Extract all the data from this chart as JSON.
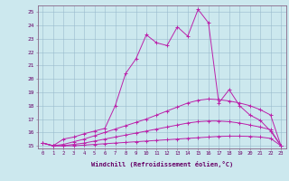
{
  "xlabel": "Windchill (Refroidissement éolien,°C)",
  "xlim": [
    -0.5,
    23.5
  ],
  "ylim": [
    14.8,
    25.5
  ],
  "yticks": [
    15,
    16,
    17,
    18,
    19,
    20,
    21,
    22,
    23,
    24,
    25
  ],
  "xticks": [
    0,
    1,
    2,
    3,
    4,
    5,
    6,
    7,
    8,
    9,
    10,
    11,
    12,
    13,
    14,
    15,
    16,
    17,
    18,
    19,
    20,
    21,
    22,
    23
  ],
  "background_color": "#cce8ee",
  "line_color": "#bb22aa",
  "grid_color": "#99bbcc",
  "lines": [
    [
      15.2,
      15.0,
      15.0,
      15.0,
      15.05,
      15.1,
      15.15,
      15.2,
      15.25,
      15.3,
      15.35,
      15.4,
      15.45,
      15.5,
      15.55,
      15.6,
      15.65,
      15.7,
      15.72,
      15.72,
      15.7,
      15.65,
      15.55,
      15.0
    ],
    [
      15.2,
      15.0,
      15.0,
      15.1,
      15.2,
      15.35,
      15.5,
      15.65,
      15.8,
      15.95,
      16.1,
      16.25,
      16.4,
      16.55,
      16.7,
      16.8,
      16.85,
      16.85,
      16.8,
      16.7,
      16.55,
      16.4,
      16.2,
      15.0
    ],
    [
      15.2,
      15.0,
      15.1,
      15.3,
      15.5,
      15.75,
      16.0,
      16.25,
      16.5,
      16.75,
      17.0,
      17.3,
      17.6,
      17.9,
      18.2,
      18.4,
      18.5,
      18.45,
      18.35,
      18.2,
      18.0,
      17.7,
      17.3,
      15.0
    ],
    [
      15.2,
      15.0,
      15.5,
      15.65,
      15.9,
      16.1,
      16.3,
      18.0,
      20.4,
      21.5,
      23.3,
      22.7,
      22.5,
      23.9,
      23.2,
      25.2,
      24.2,
      18.2,
      19.2,
      18.0,
      17.3,
      16.9,
      16.1,
      15.0
    ]
  ]
}
